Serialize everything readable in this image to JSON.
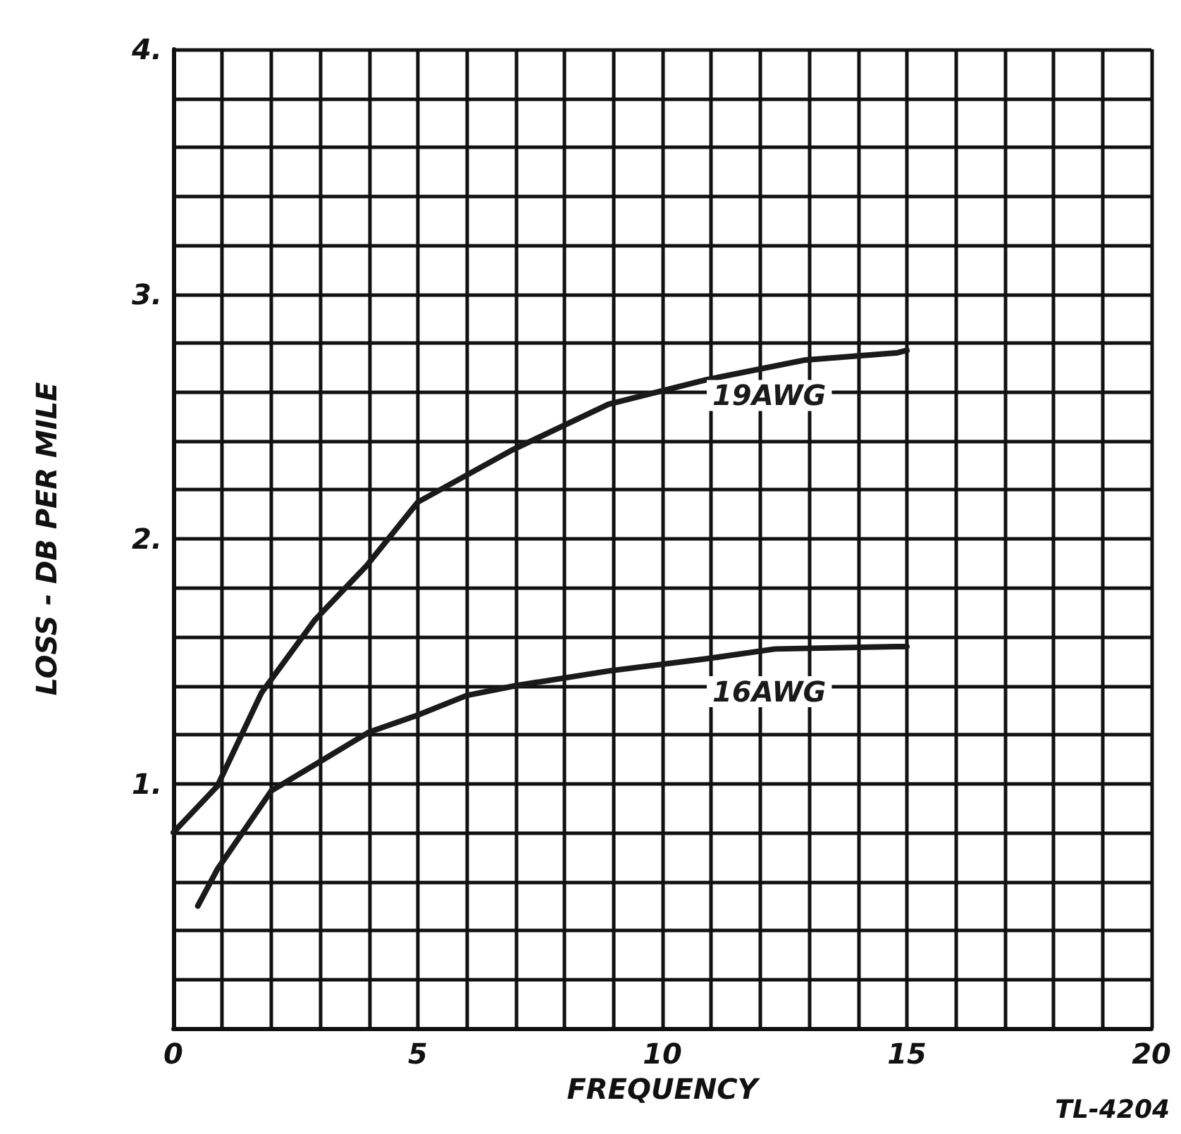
{
  "chart_data": {
    "type": "line",
    "xlabel": "FREQUENCY",
    "ylabel": "LOSS - DB PER MILE",
    "annotations": [
      "TL-4204"
    ],
    "xlim": [
      0,
      20
    ],
    "ylim": [
      0,
      4
    ],
    "xticks": [
      0,
      {
        "value": 1,
        "label": null
      },
      {
        "value": 2,
        "label": null
      },
      {
        "value": 3,
        "label": null
      },
      {
        "value": 4,
        "label": null
      },
      5,
      {
        "value": 6,
        "label": null
      },
      {
        "value": 7,
        "label": null
      },
      {
        "value": 8,
        "label": null
      },
      {
        "value": 9,
        "label": null
      },
      10,
      {
        "value": 11,
        "label": null
      },
      {
        "value": 12,
        "label": null
      },
      {
        "value": 13,
        "label": null
      },
      {
        "value": 14,
        "label": null
      },
      15,
      {
        "value": 16,
        "label": null
      },
      {
        "value": 17,
        "label": null
      },
      {
        "value": 18,
        "label": null
      },
      {
        "value": 19,
        "label": null
      },
      20
    ],
    "yticks": [
      {
        "value": 0,
        "label": null
      },
      {
        "value": 0.2,
        "label": null
      },
      {
        "value": 0.4,
        "label": null
      },
      {
        "value": 0.6,
        "label": null
      },
      {
        "value": 0.8,
        "label": null
      },
      {
        "value": 1,
        "label": "1."
      },
      {
        "value": 1.2,
        "label": null
      },
      {
        "value": 1.4,
        "label": null
      },
      {
        "value": 1.6,
        "label": null
      },
      {
        "value": 1.8,
        "label": null
      },
      {
        "value": 2,
        "label": "2."
      },
      {
        "value": 2.2,
        "label": null
      },
      {
        "value": 2.4,
        "label": null
      },
      {
        "value": 2.6,
        "label": null
      },
      {
        "value": 2.8,
        "label": null
      },
      {
        "value": 3,
        "label": "3."
      },
      {
        "value": 3.2,
        "label": null
      },
      {
        "value": 3.4,
        "label": null
      },
      {
        "value": 3.6,
        "label": null
      },
      {
        "value": 3.8,
        "label": null
      },
      {
        "value": 4,
        "label": "4."
      }
    ],
    "grid": true,
    "legend": false,
    "marker": "none",
    "line_style": "solid",
    "series": [
      {
        "name": "19AWG",
        "color": "#1a1a1a",
        "x": [
          0,
          0.9,
          1.8,
          2.9,
          3.95,
          5,
          6.9,
          8.9,
          10.9,
          12.9,
          14.8,
          15
        ],
        "values": [
          0.8,
          0.99,
          1.37,
          1.67,
          1.89,
          2.15,
          2.36,
          2.55,
          2.65,
          2.73,
          2.76,
          2.77
        ]
      },
      {
        "name": "16AWG",
        "color": "#1a1a1a",
        "x": [
          0.5,
          0.9,
          2,
          3,
          4,
          5,
          6,
          7,
          8.9,
          10.9,
          12.3,
          14.8,
          15
        ],
        "values": [
          0.5,
          0.65,
          0.97,
          1.09,
          1.21,
          1.28,
          1.36,
          1.4,
          1.46,
          1.51,
          1.55,
          1.56,
          1.56
        ]
      }
    ]
  }
}
